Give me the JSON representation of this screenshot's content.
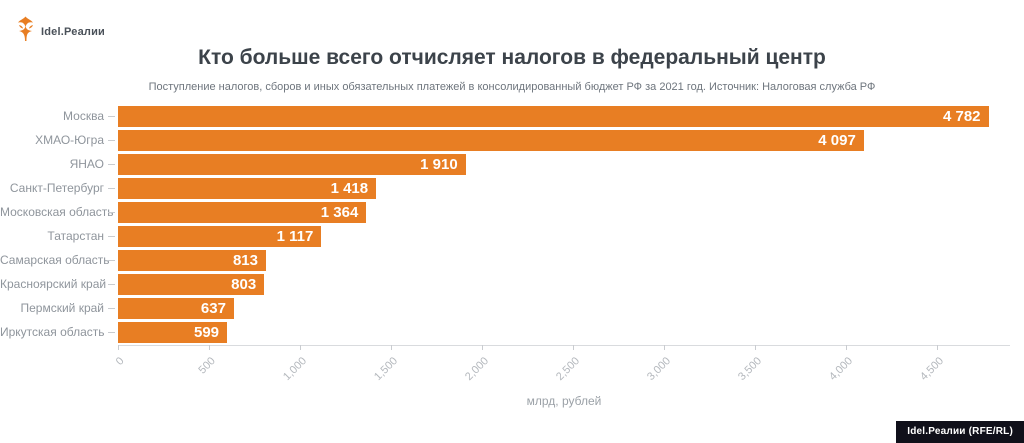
{
  "logo": {
    "text": "Idel.Реалии"
  },
  "chart_data": {
    "type": "bar",
    "orientation": "horizontal",
    "title": "Кто больше всего отчисляет налогов в федеральный центр",
    "subtitle": "Поступление налогов, сборов и иных обязательных платежей в консолидированный бюджет РФ за 2021 год. Источник: Налоговая служба РФ",
    "categories": [
      "Москва",
      "ХМАО-Югра",
      "ЯНАО",
      "Санкт-Петербург",
      "Московская область",
      "Татарстан",
      "Самарская область",
      "Красноярский край",
      "Пермский край",
      "Иркутская область"
    ],
    "values": [
      4782,
      4097,
      1910,
      1418,
      1364,
      1117,
      813,
      803,
      637,
      599
    ],
    "value_labels": [
      "4 782",
      "4 097",
      "1 910",
      "1 418",
      "1 364",
      "1 117",
      "813",
      "803",
      "637",
      "599"
    ],
    "x_ticks": [
      0,
      500,
      1000,
      1500,
      2000,
      2500,
      3000,
      3500,
      4000,
      4500
    ],
    "x_tick_labels": [
      "0",
      "500",
      "1,000",
      "1,500",
      "2,000",
      "2,500",
      "3,000",
      "3,500",
      "4,000",
      "4,500"
    ],
    "xlabel": "млрд, рублей",
    "xlim": [
      0,
      4900
    ],
    "bar_color": "#E87E23",
    "grid": false,
    "legend": false
  },
  "footer": {
    "credit": "Idel.Реалии (RFE/RL)"
  },
  "colors": {
    "bar": "#E87E23",
    "title": "#3C434A",
    "subtitle": "#6E757D",
    "category_label": "#8F959C",
    "tick_label": "#B4B8BD",
    "axis_line": "#D9DBDE",
    "credit_background": "#10101A",
    "credit_text": "#ffffff"
  }
}
